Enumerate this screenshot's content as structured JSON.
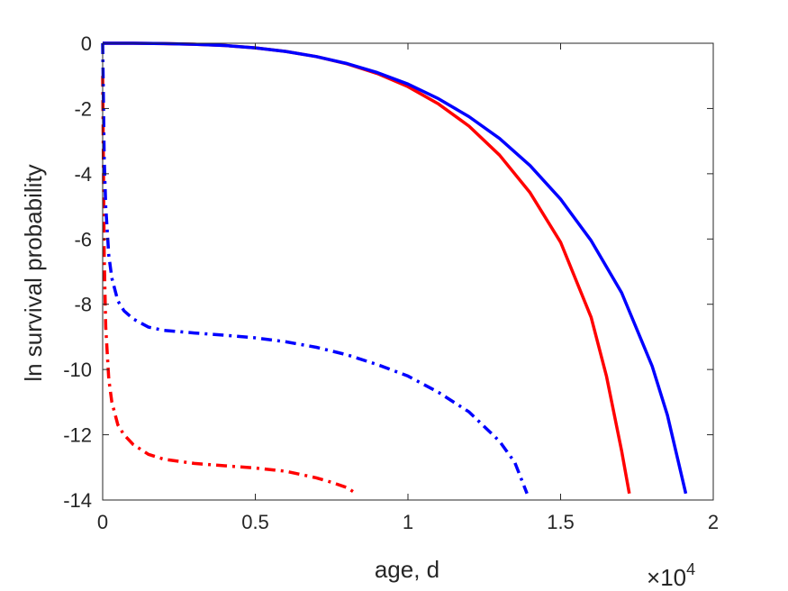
{
  "chart_data": {
    "type": "line",
    "title": "",
    "xlabel": "age, d",
    "ylabel": "ln survival probability",
    "x_multiplier": "×10^4",
    "x_multiplier_parts": {
      "times": "×",
      "base": "10",
      "exponent": "4"
    },
    "xlim": [
      0,
      2
    ],
    "ylim": [
      -14,
      0
    ],
    "xticks": [
      0,
      0.5,
      1,
      1.5,
      2
    ],
    "xtick_labels": [
      "0",
      "0.5",
      "1",
      "1.5",
      "2"
    ],
    "yticks": [
      0,
      -2,
      -4,
      -6,
      -8,
      -10,
      -12,
      -14
    ],
    "ytick_labels": [
      "0",
      "-2",
      "-4",
      "-6",
      "-8",
      "-10",
      "-12",
      "-14"
    ],
    "grid": false,
    "legend": "none",
    "series": [
      {
        "color": "#ff0000",
        "style": "solid",
        "x": [
          0.0,
          0.1,
          0.2,
          0.3,
          0.4,
          0.5,
          0.6,
          0.7,
          0.8,
          0.9,
          1.0,
          1.1,
          1.2,
          1.3,
          1.4,
          1.5,
          1.6,
          1.65,
          1.7,
          1.725
        ],
        "y": [
          0.0,
          0.0,
          -0.01,
          -0.03,
          -0.07,
          -0.14,
          -0.25,
          -0.41,
          -0.63,
          -0.93,
          -1.33,
          -1.86,
          -2.54,
          -3.43,
          -4.58,
          -6.1,
          -8.4,
          -10.2,
          -12.5,
          -13.8
        ]
      },
      {
        "color": "#0000ff",
        "style": "solid",
        "x": [
          0.0,
          0.1,
          0.2,
          0.3,
          0.4,
          0.5,
          0.6,
          0.7,
          0.8,
          0.9,
          1.0,
          1.1,
          1.2,
          1.3,
          1.4,
          1.5,
          1.6,
          1.7,
          1.8,
          1.85,
          1.91
        ],
        "y": [
          0.0,
          0.0,
          -0.01,
          -0.03,
          -0.07,
          -0.14,
          -0.25,
          -0.41,
          -0.62,
          -0.9,
          -1.25,
          -1.7,
          -2.25,
          -2.92,
          -3.75,
          -4.78,
          -6.05,
          -7.65,
          -9.9,
          -11.4,
          -13.8
        ]
      },
      {
        "color": "#ff0000",
        "style": "dashdot",
        "x": [
          0.0,
          0.005,
          0.01,
          0.02,
          0.03,
          0.05,
          0.07,
          0.1,
          0.15,
          0.2,
          0.3,
          0.4,
          0.5,
          0.6,
          0.7,
          0.75,
          0.8,
          0.83
        ],
        "y": [
          -1.0,
          -6.5,
          -8.7,
          -10.3,
          -11.0,
          -11.7,
          -12.0,
          -12.3,
          -12.6,
          -12.75,
          -12.88,
          -12.95,
          -13.02,
          -13.12,
          -13.32,
          -13.46,
          -13.62,
          -13.8
        ]
      },
      {
        "color": "#0000ff",
        "style": "dashdot",
        "x": [
          0.0,
          0.005,
          0.01,
          0.02,
          0.03,
          0.05,
          0.07,
          0.1,
          0.15,
          0.2,
          0.3,
          0.4,
          0.5,
          0.6,
          0.7,
          0.8,
          0.9,
          1.0,
          1.1,
          1.2,
          1.3,
          1.35,
          1.39
        ],
        "y": [
          0.0,
          -3.5,
          -5.0,
          -6.5,
          -7.2,
          -7.9,
          -8.2,
          -8.45,
          -8.7,
          -8.8,
          -8.88,
          -8.95,
          -9.03,
          -9.15,
          -9.32,
          -9.55,
          -9.85,
          -10.2,
          -10.7,
          -11.3,
          -12.2,
          -12.85,
          -13.8
        ]
      }
    ]
  }
}
